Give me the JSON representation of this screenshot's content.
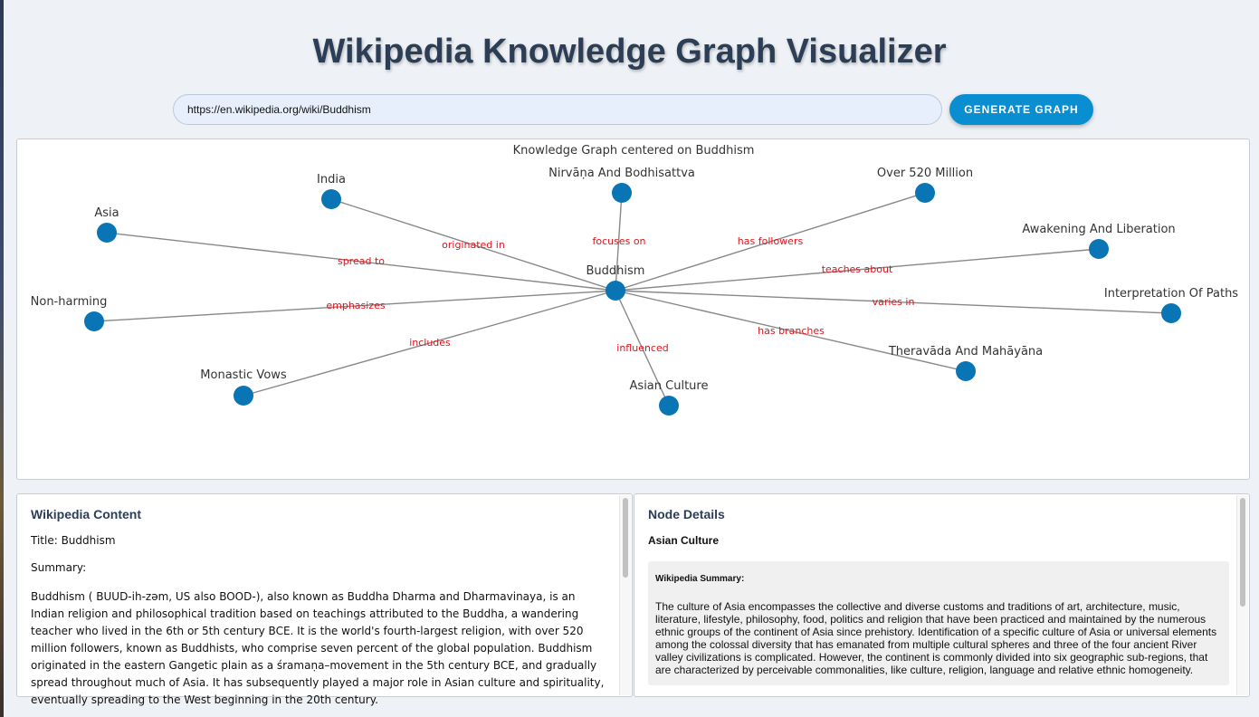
{
  "app": {
    "title": "Wikipedia Knowledge Graph Visualizer"
  },
  "search": {
    "value": "https://en.wikipedia.org/wiki/Buddhism",
    "button_label": "GENERATE GRAPH"
  },
  "graph": {
    "title": "Knowledge Graph centered on Buddhism",
    "center": "Buddhism",
    "node_color": "#0a75b5",
    "edge_color": "#888888",
    "edge_label_color": "#e0141c",
    "nodes": [
      {
        "id": "buddhism",
        "label": "Buddhism"
      },
      {
        "id": "india",
        "label": "India"
      },
      {
        "id": "nirvana",
        "label": "Nirvāṇa And Bodhisattva"
      },
      {
        "id": "over520",
        "label": "Over 520 Million"
      },
      {
        "id": "awakening",
        "label": "Awakening And Liberation"
      },
      {
        "id": "interpretation",
        "label": "Interpretation Of Paths"
      },
      {
        "id": "theravada",
        "label": "Theravāda And Mahāyāna"
      },
      {
        "id": "asianculture",
        "label": "Asian Culture"
      },
      {
        "id": "monastic",
        "label": "Monastic Vows"
      },
      {
        "id": "nonharming",
        "label": "Non-harming"
      },
      {
        "id": "asia",
        "label": "Asia"
      }
    ],
    "edges": [
      {
        "target": "asia",
        "label": "spread to"
      },
      {
        "target": "india",
        "label": "originated in"
      },
      {
        "target": "nirvana",
        "label": "focuses on"
      },
      {
        "target": "over520",
        "label": "has followers"
      },
      {
        "target": "awakening",
        "label": "teaches about"
      },
      {
        "target": "interpretation",
        "label": "varies in"
      },
      {
        "target": "theravada",
        "label": "has branches"
      },
      {
        "target": "asianculture",
        "label": "influenced"
      },
      {
        "target": "monastic",
        "label": "includes"
      },
      {
        "target": "nonharming",
        "label": "emphasizes"
      }
    ]
  },
  "content": {
    "heading": "Wikipedia Content",
    "title_line": "Title: Buddhism",
    "summary_label": "Summary:",
    "summary": "Buddhism ( BUUD-ih-zəm, US also BOOD-), also known as Buddha Dharma and Dharmavinaya, is an Indian religion and philosophical tradition based on teachings attributed to the Buddha, a wandering teacher who lived in the 6th or 5th century BCE. It is the world's fourth-largest religion, with over 520 million followers, known as Buddhists, who comprise seven percent of the global population. Buddhism originated in the eastern Gangetic plain as a śramaṇa–movement in the 5th century BCE, and gradually spread throughout much of Asia. It has subsequently played a major role in Asian culture and spirituality, eventually spreading to the West beginning in the 20th century."
  },
  "details": {
    "heading": "Node Details",
    "node_name": "Asian Culture",
    "summary_title": "Wikipedia Summary:",
    "summary": "The culture of Asia encompasses the collective and diverse customs and traditions of art, architecture, music, literature, lifestyle, philosophy, food, politics and religion that have been practiced and maintained by the numerous ethnic groups of the continent of Asia since prehistory. Identification of a specific culture of Asia or universal elements among the colossal diversity that has emanated from multiple cultural spheres and three of the four ancient River valley civilizations is complicated. However, the continent is commonly divided into six geographic sub-regions, that are characterized by perceivable commonalities, like culture, religion, language and relative ethnic homogeneity."
  }
}
